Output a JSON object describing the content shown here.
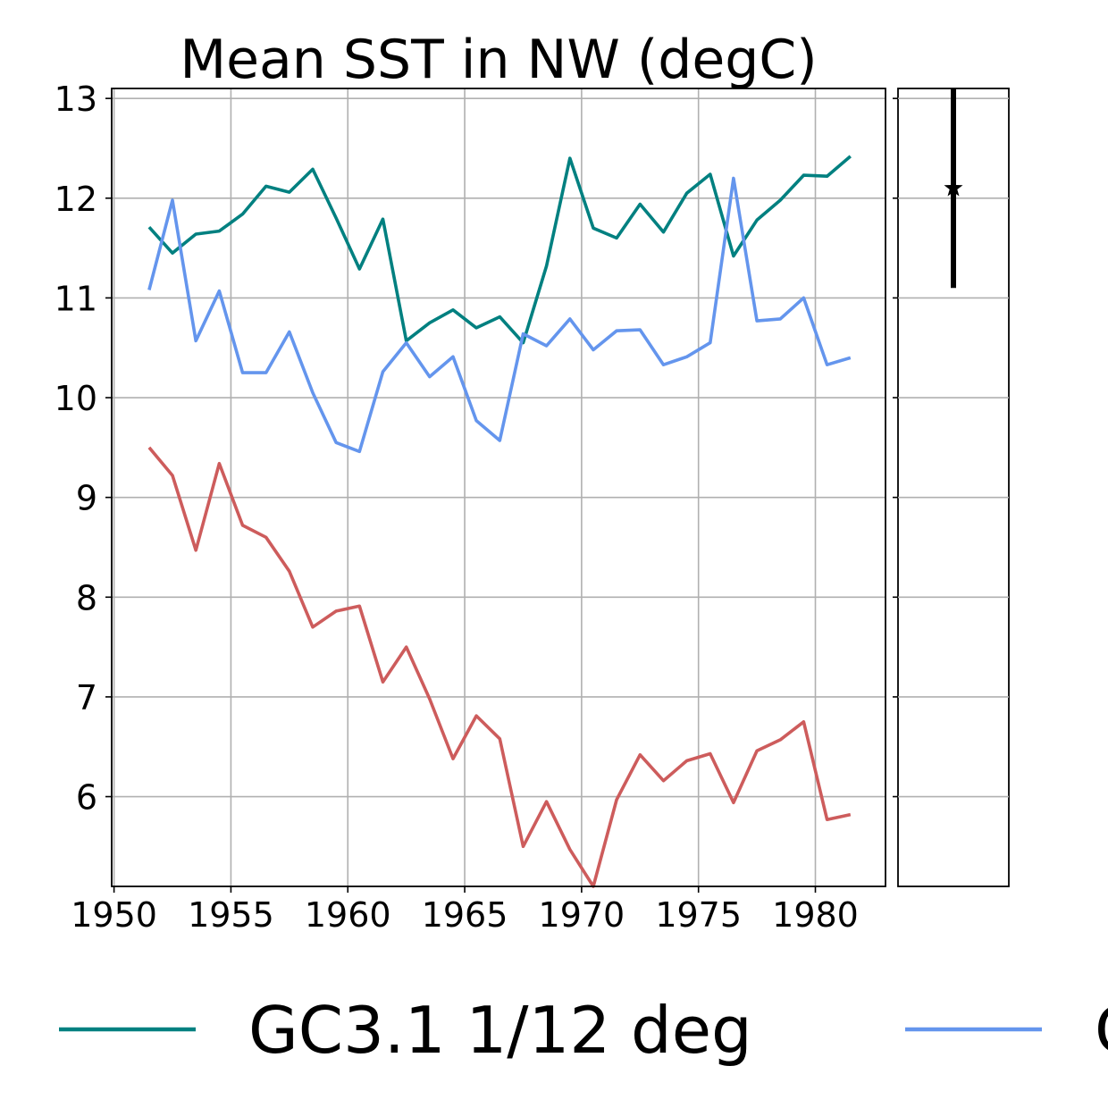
{
  "chart_data": {
    "type": "line",
    "title": "Mean SST in NW (degC)",
    "xlabel": "",
    "ylabel": "",
    "xlim": [
      1949.9,
      1983.0
    ],
    "ylim": [
      5.1,
      13.1
    ],
    "x_ticks": [
      1950,
      1955,
      1960,
      1965,
      1970,
      1975,
      1980
    ],
    "y_ticks": [
      6,
      7,
      8,
      9,
      10,
      11,
      12,
      13
    ],
    "grid": true,
    "legend_position": "bottom",
    "x": [
      1951.5,
      1952.5,
      1953.5,
      1954.5,
      1955.5,
      1956.5,
      1957.5,
      1958.5,
      1959.5,
      1960.5,
      1961.5,
      1962.5,
      1963.5,
      1964.5,
      1965.5,
      1966.5,
      1967.5,
      1968.5,
      1969.5,
      1970.5,
      1971.5,
      1972.5,
      1973.5,
      1974.5,
      1975.5,
      1976.5,
      1977.5,
      1978.5,
      1979.5,
      1980.5,
      1981.5
    ],
    "series": [
      {
        "name": "GC3.1 1/12 deg",
        "color": "#008080",
        "values": [
          11.71,
          11.45,
          11.64,
          11.67,
          11.84,
          12.12,
          12.06,
          12.29,
          11.8,
          11.29,
          11.79,
          10.57,
          10.75,
          10.88,
          10.7,
          10.81,
          10.55,
          11.32,
          12.4,
          11.7,
          11.6,
          11.94,
          11.66,
          12.05,
          12.24,
          11.42,
          11.78,
          11.98,
          12.23,
          12.22,
          12.42
        ]
      },
      {
        "name": "",
        "color": "#6495ED",
        "values": [
          11.08,
          11.98,
          10.57,
          11.07,
          10.25,
          10.25,
          10.66,
          10.05,
          9.55,
          9.46,
          10.26,
          10.55,
          10.21,
          10.41,
          9.77,
          9.57,
          10.64,
          10.52,
          10.79,
          10.48,
          10.67,
          10.68,
          10.33,
          10.41,
          10.55,
          12.2,
          10.77,
          10.79,
          11.0,
          10.33,
          10.4
        ]
      },
      {
        "name": "",
        "color": "#CD5C5C",
        "values": [
          9.5,
          9.22,
          8.47,
          9.34,
          8.72,
          8.6,
          8.26,
          7.7,
          7.86,
          7.91,
          7.15,
          7.5,
          6.98,
          6.38,
          6.81,
          6.58,
          5.5,
          5.95,
          5.47,
          5.1,
          5.97,
          6.42,
          6.16,
          6.36,
          6.43,
          5.94,
          6.46,
          6.57,
          6.75,
          5.77,
          5.82
        ]
      }
    ],
    "side_panel": {
      "type": "errorbar",
      "center": 12.1,
      "lower": 11.1,
      "upper": 13.1,
      "marker": "star",
      "color": "#000000"
    },
    "legend": [
      {
        "label": "GC3.1 1/12 deg",
        "color": "#008080"
      },
      {
        "label": "G",
        "color": "#6495ED"
      }
    ]
  }
}
